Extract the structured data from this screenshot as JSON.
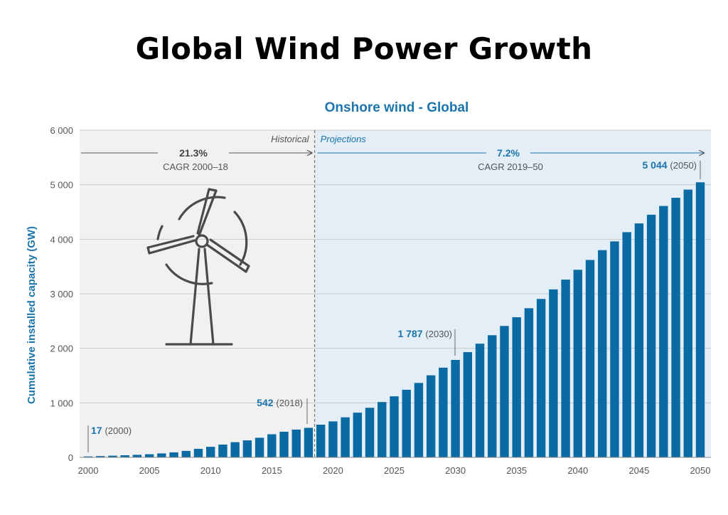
{
  "page": {
    "title": "Global Wind Power Growth"
  },
  "chart_data": {
    "type": "bar",
    "title": "Onshore wind - Global",
    "ylabel": "Cumulative installed capacity (GW)",
    "ylim": [
      0,
      6000
    ],
    "y_ticks": [
      "0",
      "1 000",
      "2 000",
      "3 000",
      "4 000",
      "5 000",
      "6 000"
    ],
    "x_tick_labels": [
      "2000",
      "2005",
      "2010",
      "2015",
      "2020",
      "2025",
      "2030",
      "2035",
      "2040",
      "2045",
      "2050"
    ],
    "grid": true,
    "bar_color": "#0a6aa3",
    "projection_bg": "#e3eef6",
    "historical_bg": "#f1f1f1",
    "regions": {
      "historical_label": "Historical",
      "projection_label": "Projections"
    },
    "cagr_historical": {
      "value": "21.3%",
      "label": "CAGR 2000–18"
    },
    "cagr_projection": {
      "value": "7.2%",
      "label": "CAGR 2019–50"
    },
    "annotations": [
      {
        "year": 2000,
        "value": "17",
        "paren": "(2000)"
      },
      {
        "year": 2018,
        "value": "542",
        "paren": "(2018)"
      },
      {
        "year": 2030,
        "value": "1 787",
        "paren": "(2030)"
      },
      {
        "year": 2050,
        "value": "5 044",
        "paren": "(2050)"
      }
    ],
    "icon": "wind-turbine-icon",
    "x": [
      2000,
      2001,
      2002,
      2003,
      2004,
      2005,
      2006,
      2007,
      2008,
      2009,
      2010,
      2011,
      2012,
      2013,
      2014,
      2015,
      2016,
      2017,
      2018,
      2019,
      2020,
      2021,
      2022,
      2023,
      2024,
      2025,
      2026,
      2027,
      2028,
      2029,
      2030,
      2031,
      2032,
      2033,
      2034,
      2035,
      2036,
      2037,
      2038,
      2039,
      2040,
      2041,
      2042,
      2043,
      2044,
      2045,
      2046,
      2047,
      2048,
      2049,
      2050
    ],
    "values": [
      17,
      24,
      31,
      39,
      47,
      58,
      73,
      92,
      119,
      156,
      194,
      235,
      279,
      312,
      360,
      424,
      470,
      510,
      542,
      600,
      660,
      735,
      820,
      910,
      1015,
      1120,
      1240,
      1365,
      1505,
      1645,
      1787,
      1930,
      2085,
      2240,
      2410,
      2570,
      2735,
      2905,
      3080,
      3260,
      3440,
      3620,
      3800,
      3960,
      4130,
      4290,
      4450,
      4610,
      4760,
      4910,
      5044
    ]
  }
}
